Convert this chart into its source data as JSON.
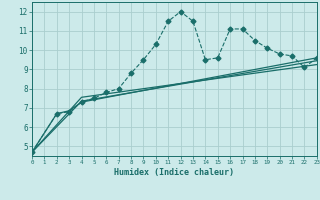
{
  "title": "",
  "xlabel": "Humidex (Indice chaleur)",
  "bg_color": "#cceaea",
  "grid_color": "#aacece",
  "line_color": "#1a6e6a",
  "xlim": [
    0,
    23
  ],
  "ylim": [
    4.5,
    12.5
  ],
  "xticks": [
    0,
    1,
    2,
    3,
    4,
    5,
    6,
    7,
    8,
    9,
    10,
    11,
    12,
    13,
    14,
    15,
    16,
    17,
    18,
    19,
    20,
    21,
    22,
    23
  ],
  "yticks": [
    5,
    6,
    7,
    8,
    9,
    10,
    11,
    12
  ],
  "series": [
    {
      "x": [
        0,
        2,
        3,
        4,
        5,
        6,
        7,
        8,
        9,
        10,
        11,
        12,
        13,
        14,
        15,
        16,
        17,
        18,
        19,
        20,
        21,
        22,
        23
      ],
      "y": [
        4.7,
        6.7,
        6.8,
        7.3,
        7.5,
        7.8,
        8.0,
        8.8,
        9.5,
        10.3,
        11.5,
        12.0,
        11.5,
        9.5,
        9.6,
        11.1,
        11.1,
        10.5,
        10.1,
        9.8,
        9.7,
        9.1,
        9.6
      ],
      "marker": "D",
      "markersize": 2.5,
      "linestyle": "--",
      "linewidth": 0.8
    },
    {
      "x": [
        0,
        2,
        3,
        4,
        23
      ],
      "y": [
        4.7,
        6.7,
        6.85,
        7.3,
        9.6
      ],
      "marker": null,
      "markersize": 0,
      "linestyle": "-",
      "linewidth": 0.9
    },
    {
      "x": [
        0,
        4,
        23
      ],
      "y": [
        4.7,
        7.35,
        9.45
      ],
      "marker": null,
      "markersize": 0,
      "linestyle": "-",
      "linewidth": 0.9
    },
    {
      "x": [
        0,
        4,
        23
      ],
      "y": [
        4.7,
        7.55,
        9.25
      ],
      "marker": null,
      "markersize": 0,
      "linestyle": "-",
      "linewidth": 0.9
    }
  ]
}
